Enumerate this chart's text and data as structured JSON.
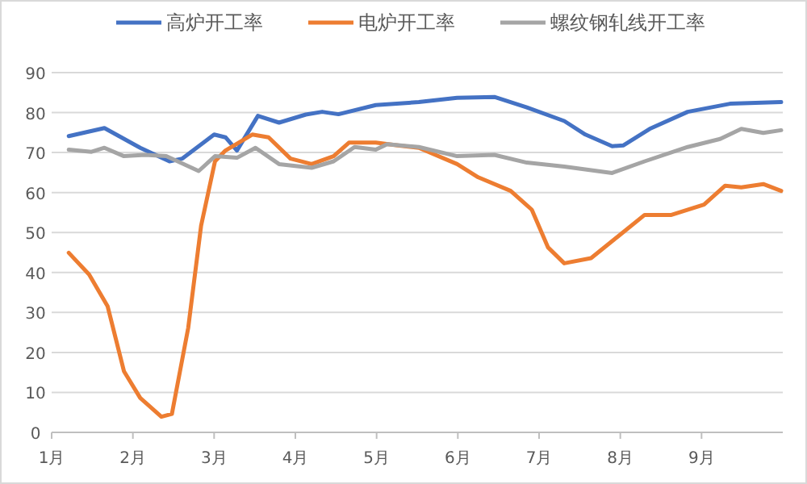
{
  "chart_data": {
    "type": "line",
    "xlim": [
      1,
      10
    ],
    "ylim": [
      0,
      90
    ],
    "xticks": [
      {
        "value": 1,
        "label": "1月"
      },
      {
        "value": 2,
        "label": "2月"
      },
      {
        "value": 3,
        "label": "3月"
      },
      {
        "value": 4,
        "label": "4月"
      },
      {
        "value": 5,
        "label": "5月"
      },
      {
        "value": 6,
        "label": "6月"
      },
      {
        "value": 7,
        "label": "7月"
      },
      {
        "value": 8,
        "label": "8月"
      },
      {
        "value": 9,
        "label": "9月"
      }
    ],
    "yticks": [
      0,
      10,
      20,
      30,
      40,
      50,
      60,
      70,
      80,
      90
    ],
    "grid": "y",
    "legend": "top",
    "series": [
      {
        "name": "高炉开工率",
        "color": "#4472c4",
        "x": [
          1.21,
          1.65,
          2.09,
          2.45,
          2.61,
          3.0,
          3.14,
          3.28,
          3.54,
          3.8,
          4.13,
          4.33,
          4.53,
          4.99,
          5.52,
          5.99,
          6.45,
          6.85,
          7.31,
          7.57,
          7.9,
          8.04,
          8.36,
          8.83,
          9.35,
          9.98
        ],
        "values": [
          74.1,
          76.1,
          71.2,
          67.8,
          68.5,
          74.5,
          73.8,
          70.5,
          79.2,
          77.5,
          79.5,
          80.2,
          79.6,
          81.9,
          82.6,
          83.7,
          83.9,
          81.3,
          77.9,
          74.5,
          71.6,
          71.8,
          75.9,
          80.2,
          82.2,
          82.6
        ]
      },
      {
        "name": "电炉开工率",
        "color": "#ed7d31",
        "x": [
          1.21,
          1.46,
          1.69,
          1.89,
          2.09,
          2.35,
          2.48,
          2.68,
          2.84,
          3.01,
          3.14,
          3.47,
          3.67,
          3.94,
          4.2,
          4.47,
          4.66,
          4.99,
          5.26,
          5.52,
          5.99,
          6.25,
          6.65,
          6.91,
          7.11,
          7.31,
          7.64,
          7.97,
          8.3,
          8.63,
          9.03,
          9.29,
          9.49,
          9.76,
          9.98
        ],
        "values": [
          44.9,
          39.5,
          31.5,
          15.3,
          8.6,
          3.9,
          4.6,
          26.1,
          51.7,
          67.8,
          70.5,
          74.5,
          73.8,
          68.5,
          67.1,
          69.1,
          72.5,
          72.5,
          71.8,
          71.2,
          67.1,
          63.8,
          60.4,
          55.7,
          46.3,
          42.3,
          43.6,
          49.0,
          54.4,
          54.4,
          57.0,
          61.7,
          61.3,
          62.1,
          60.4
        ]
      },
      {
        "name": "螺纹钢轧线开工率",
        "color": "#a5a5a5",
        "x": [
          1.21,
          1.49,
          1.65,
          1.89,
          2.15,
          2.41,
          2.81,
          3.01,
          3.28,
          3.51,
          3.8,
          4.2,
          4.47,
          4.73,
          4.99,
          5.13,
          5.52,
          5.99,
          6.45,
          6.85,
          7.31,
          7.9,
          8.3,
          8.83,
          9.23,
          9.49,
          9.76,
          9.98
        ],
        "values": [
          70.7,
          70.2,
          71.2,
          69.1,
          69.4,
          69.1,
          65.4,
          69.1,
          68.7,
          71.2,
          67.1,
          66.2,
          67.8,
          71.4,
          70.7,
          72.1,
          71.4,
          69.1,
          69.4,
          67.5,
          66.5,
          64.9,
          67.8,
          71.4,
          73.4,
          75.9,
          74.9,
          75.6
        ]
      }
    ]
  }
}
